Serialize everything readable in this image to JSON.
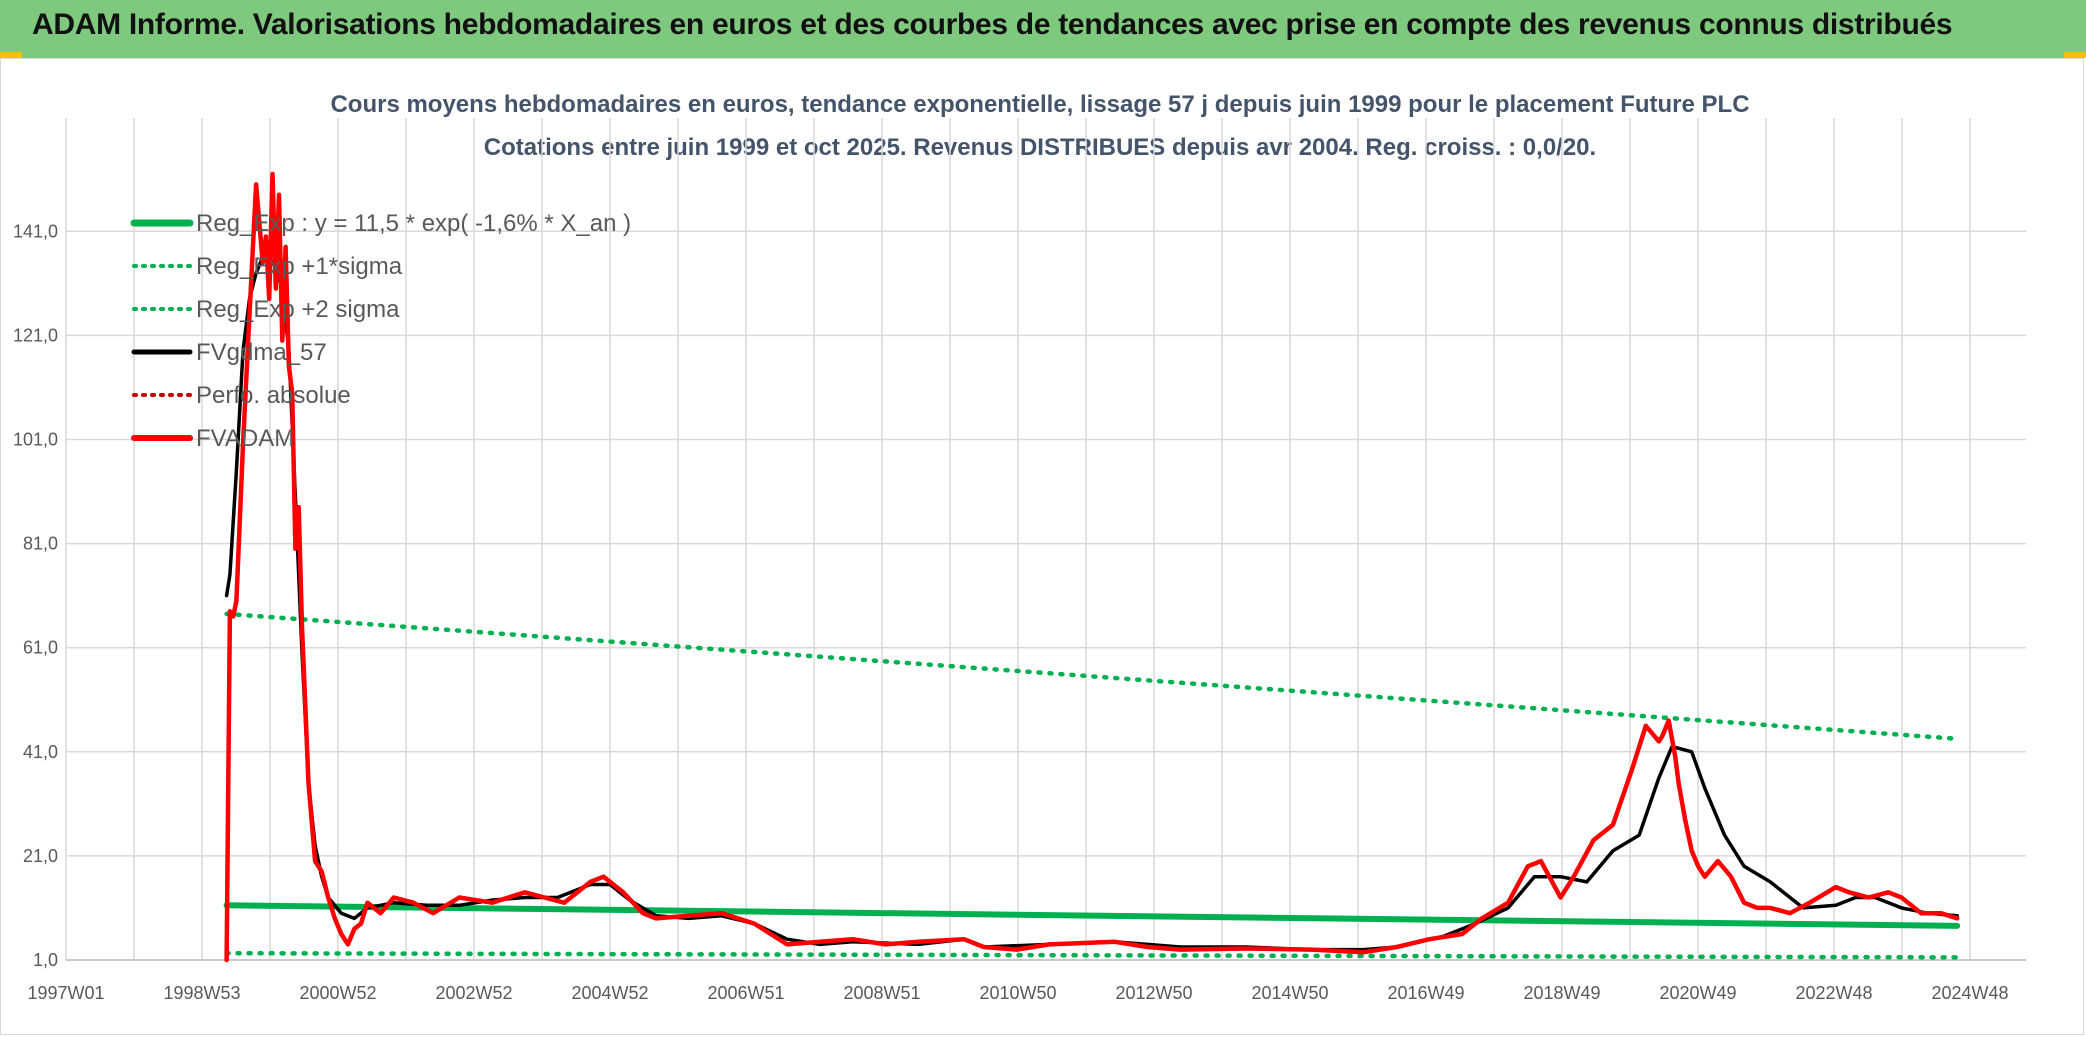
{
  "banner": {
    "title": "ADAM Informe. Valorisations hebdomadaires en euros et des courbes de tendances avec prise en compte des revenus connus distribués"
  },
  "chart_data": {
    "type": "line",
    "title": "Cours moyens hebdomadaires en euros, tendance exponentielle, lissage 57 j depuis juin 1999 pour le placement Future PLC",
    "subtitle": "Cotations entre juin 1999 et oct 2025. Revenus DISTRIBUES depuis avr 2004. Reg. croiss. : 0,0/20.",
    "xlabel": "",
    "ylabel": "",
    "x_ticks": [
      "1997W01",
      "1998W53",
      "2000W52",
      "2002W52",
      "2004W52",
      "2006W51",
      "2008W51",
      "2010W50",
      "2012W50",
      "2014W50",
      "2016W49",
      "2018W49",
      "2020W49",
      "2022W48",
      "2024W48"
    ],
    "y_ticks": [
      "1,0",
      "21,0",
      "41,0",
      "61,0",
      "81,0",
      "101,0",
      "121,0",
      "141,0"
    ],
    "ylim": [
      1,
      157
    ],
    "xlim": [
      1997.0,
      2026.9
    ],
    "grid": true,
    "legend_position": "top-left",
    "series": [
      {
        "name": "Reg_Exp : y = 11,5 * exp( -1,6% *  X_an )",
        "color": "#00b050",
        "style": "solid",
        "x": [
          1999.45,
          2025.85
        ],
        "y": [
          11.5,
          7.55
        ]
      },
      {
        "name": "Reg_Exp +1*sigma",
        "color": "#00b050",
        "style": "dotted",
        "x": [
          1999.45,
          2025.85
        ],
        "y": [
          2.3,
          1.5
        ]
      },
      {
        "name": "Reg_Exp +2 sigma",
        "color": "#00b050",
        "style": "dotted",
        "x": [
          1999.45,
          2025.85
        ],
        "y": [
          67.5,
          43.5
        ]
      },
      {
        "name": "FVgdma_57",
        "color": "#000000",
        "style": "solid",
        "x": [
          1999.45,
          1999.5,
          1999.6,
          1999.7,
          1999.8,
          1999.9,
          2000.0,
          2000.1,
          2000.2,
          2000.3,
          2000.4,
          2000.5,
          2000.6,
          2000.7,
          2000.8,
          2000.9,
          2001.0,
          2001.2,
          2001.4,
          2001.6,
          2002.0,
          2002.5,
          2003.0,
          2003.5,
          2004.0,
          2004.5,
          2005.0,
          2005.3,
          2005.6,
          2006.0,
          2006.5,
          2007.0,
          2007.5,
          2008.0,
          2008.5,
          2009.0,
          2010.0,
          2010.7,
          2011.0,
          2012.0,
          2013.0,
          2014.0,
          2015.0,
          2016.0,
          2016.8,
          2017.3,
          2018.0,
          2018.5,
          2019.0,
          2019.4,
          2019.8,
          2020.2,
          2020.6,
          2021.0,
          2021.3,
          2021.5,
          2021.8,
          2022.0,
          2022.3,
          2022.6,
          2023.0,
          2023.5,
          2024.0,
          2024.3,
          2024.6,
          2025.0,
          2025.4,
          2025.85
        ],
        "y": [
          71,
          75,
          95,
          118,
          128,
          133,
          136,
          136,
          134,
          130,
          118,
          90,
          60,
          35,
          23,
          17,
          13,
          10,
          9,
          11,
          12,
          11.5,
          11.5,
          12.5,
          13,
          13,
          15.5,
          15.5,
          12.5,
          9.5,
          9,
          9.5,
          8,
          5,
          4,
          4.5,
          4,
          5,
          3.5,
          4,
          4.5,
          3.5,
          3.5,
          3,
          3,
          3.5,
          5.5,
          8,
          11,
          17,
          17,
          16,
          22,
          25,
          36,
          42,
          41,
          34,
          25,
          19,
          16,
          11,
          11.5,
          13,
          13,
          11,
          10,
          9.5
        ]
      },
      {
        "name": "Perfo. absolue",
        "color": "#c00000",
        "style": "dotted",
        "x": [],
        "y": []
      },
      {
        "name": "FVADAM",
        "color": "#ff0000",
        "style": "solid",
        "x": [
          1999.45,
          1999.5,
          1999.55,
          1999.6,
          1999.7,
          1999.8,
          1999.9,
          2000.0,
          2000.05,
          2000.1,
          2000.15,
          2000.2,
          2000.25,
          2000.3,
          2000.35,
          2000.4,
          2000.45,
          2000.5,
          2000.55,
          2000.6,
          2000.65,
          2000.7,
          2000.8,
          2000.9,
          2001.0,
          2001.1,
          2001.2,
          2001.3,
          2001.4,
          2001.5,
          2001.6,
          2001.8,
          2002.0,
          2002.3,
          2002.6,
          2003.0,
          2003.5,
          2004.0,
          2004.3,
          2004.6,
          2005.0,
          2005.2,
          2005.5,
          2005.8,
          2006.0,
          2006.5,
          2007.0,
          2007.5,
          2008.0,
          2008.5,
          2009.0,
          2009.5,
          2010.0,
          2010.7,
          2011.0,
          2011.5,
          2012.0,
          2013.0,
          2013.5,
          2014.0,
          2015.0,
          2016.0,
          2016.8,
          2017.3,
          2017.8,
          2018.3,
          2018.6,
          2019.0,
          2019.3,
          2019.5,
          2019.8,
          2020.0,
          2020.3,
          2020.6,
          2020.9,
          2021.1,
          2021.3,
          2021.35,
          2021.45,
          2021.55,
          2021.6,
          2021.7,
          2021.8,
          2021.9,
          2022.0,
          2022.2,
          2022.4,
          2022.6,
          2022.8,
          2023.0,
          2023.3,
          2023.6,
          2024.0,
          2024.2,
          2024.5,
          2024.8,
          2025.0,
          2025.3,
          2025.6,
          2025.85
        ],
        "y": [
          1,
          68,
          67,
          70,
          100,
          125,
          150,
          135,
          140,
          128,
          152,
          130,
          148,
          120,
          138,
          115,
          110,
          80,
          88,
          65,
          50,
          35,
          20,
          18,
          13,
          9,
          6,
          4,
          7,
          8,
          12,
          10,
          13,
          12,
          10,
          13,
          12,
          14,
          13,
          12,
          16,
          17,
          14,
          10,
          9,
          9.5,
          10,
          8,
          4,
          4.5,
          5,
          4,
          4.5,
          5,
          3.5,
          3,
          4,
          4.5,
          3.5,
          3,
          3.2,
          3,
          2.5,
          3.5,
          5,
          6,
          9,
          12,
          19,
          20,
          13,
          17,
          24,
          27,
          38,
          46,
          43,
          44,
          47,
          40,
          35,
          28,
          22,
          19,
          17,
          20,
          17,
          12,
          11,
          11,
          10,
          12,
          15,
          14,
          13,
          14,
          13,
          10,
          10,
          9
        ]
      }
    ]
  }
}
